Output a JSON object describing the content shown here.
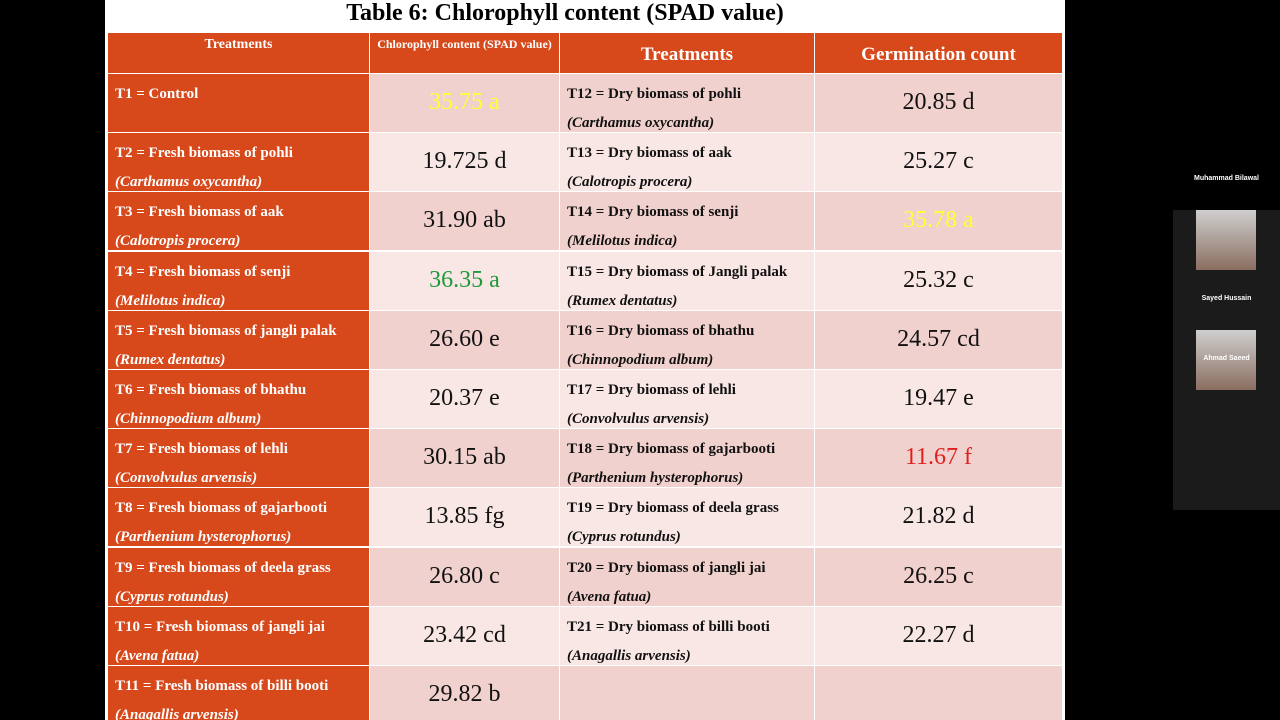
{
  "slide": {
    "title": "Table 6:   Chlorophyll content (SPAD value)",
    "table": {
      "header": [
        "Treatments",
        "Chlorophyll content (SPAD value)",
        "Treatments",
        "Germination count"
      ],
      "rows": [
        {
          "left": {
            "label": "T1 = Control"
          },
          "chl": "35.75 a",
          "chl_color": "#ffff33",
          "right": {
            "label": "T12 = Dry biomass of pohli",
            "species": "(Carthamus oxycantha)"
          },
          "germ": "20.85 d"
        },
        {
          "left": {
            "label": "T2 = Fresh biomass of pohli",
            "species": "(Carthamus oxycantha)"
          },
          "chl": "19.725 d",
          "right": {
            "label": "T13 = Dry biomass of aak",
            "species": "(Calotropis procera)"
          },
          "germ": "25.27 c"
        },
        {
          "left": {
            "label": "T3 = Fresh biomass of aak",
            "species": "(Calotropis procera)"
          },
          "chl": "31.90 ab",
          "right": {
            "label": "T14 = Dry biomass of senji",
            "species": "(Melilotus indica)"
          },
          "germ": "35.78 a",
          "germ_color": "#ffff33"
        },
        {
          "left": {
            "label": "T4 = Fresh biomass of senji",
            "species": "(Melilotus indica)"
          },
          "chl": "36.35 a",
          "chl_color": "#1f9a3a",
          "right": {
            "label": "T15 = Dry biomass of Jangli palak",
            "species": "(Rumex dentatus)"
          },
          "germ": "25.32 c"
        },
        {
          "left": {
            "label": "T5 = Fresh biomass of jangli palak",
            "species": "(Rumex dentatus)"
          },
          "chl": "26.60 e",
          "right": {
            "label": "T16 = Dry biomass of bhathu",
            "species": "(Chinnopodium album)"
          },
          "germ": "24.57 cd"
        },
        {
          "left": {
            "label": "T6 = Fresh biomass of bhathu",
            "species": "(Chinnopodium album)"
          },
          "chl": "20.37 e",
          "right": {
            "label": "T17 = Dry biomass of lehli",
            "species": "(Convolvulus arvensis)"
          },
          "germ": "19.47 e"
        },
        {
          "left": {
            "label": "T7 = Fresh biomass of lehli",
            "species": "(Convolvulus arvensis)"
          },
          "chl": "30.15 ab",
          "right": {
            "label": "T18 = Dry biomass of gajarbooti",
            "species": "(Parthenium hysterophorus)"
          },
          "germ": "11.67 f",
          "germ_color": "#e02020"
        },
        {
          "left": {
            "label": "T8 = Fresh biomass of gajarbooti",
            "species": "(Parthenium hysterophorus)"
          },
          "chl": "13.85 fg",
          "right": {
            "label": "T19 = Dry biomass of deela grass",
            "species": "(Cyprus rotundus)"
          },
          "germ": "21.82 d"
        },
        {
          "left": {
            "label": "T9 = Fresh biomass of deela grass",
            "species": "(Cyprus rotundus)"
          },
          "chl": "26.80 c",
          "right": {
            "label": "T20 = Dry biomass of jangli jai",
            "species": "(Avena fatua)"
          },
          "germ": "26.25 c"
        },
        {
          "left": {
            "label": "T10 = Fresh biomass of jangli jai",
            "species": "(Avena fatua)"
          },
          "chl": "23.42 cd",
          "right": {
            "label": "T21 = Dry biomass of billi booti",
            "species": "(Anagallis arvensis)"
          },
          "germ": "22.27 d"
        },
        {
          "left": {
            "label": "T11 = Fresh biomass of billi booti",
            "species": "(Anagallis arvensis)"
          },
          "chl": "29.82 b"
        }
      ]
    }
  },
  "participants": [
    "Muhammad Bilawal",
    "Sayed Hussain",
    "Ahmad Saeed"
  ]
}
